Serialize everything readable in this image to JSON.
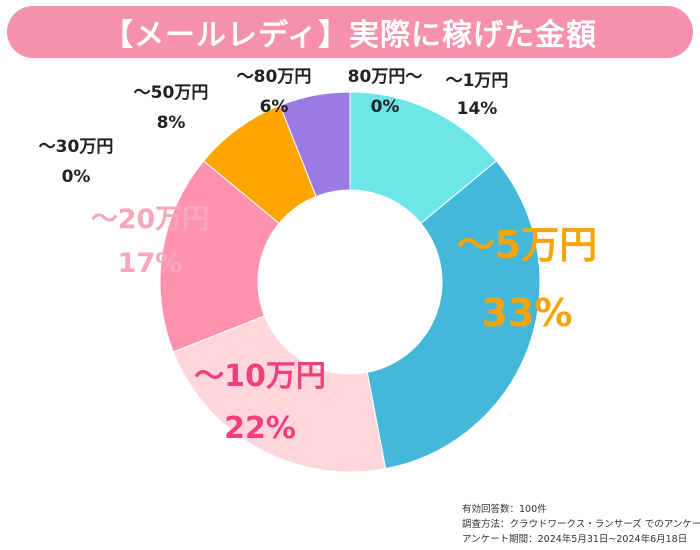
{
  "title": "【メールレディ】実際に稼げた金額",
  "chart_data": {
    "type": "pie",
    "title": "【メールレディ】実際に稼げた金額",
    "slices": [
      {
        "label": "～1万円",
        "value": 14,
        "value_label": "14%",
        "color": "#6ce6e8",
        "label_color": "#222222",
        "emphasis": "normal"
      },
      {
        "label": "～5万円",
        "value": 33,
        "value_label": "33%",
        "color": "#43b8d8",
        "label_color": "#f5a50a",
        "emphasis": "large"
      },
      {
        "label": "～10万円",
        "value": 22,
        "value_label": "22%",
        "color": "#ffd6db",
        "label_color": "#ef3f7f",
        "emphasis": "medium"
      },
      {
        "label": "～20万円",
        "value": 17,
        "value_label": "17%",
        "color": "#ff92af",
        "label_color": "#f7a6bc",
        "emphasis": "medium"
      },
      {
        "label": "～30万円",
        "value": 0,
        "value_label": "0%",
        "color": "#ff7aa0",
        "label_color": "#222222",
        "emphasis": "normal"
      },
      {
        "label": "～50万円",
        "value": 8,
        "value_label": "8%",
        "color": "#fea600",
        "label_color": "#222222",
        "emphasis": "normal"
      },
      {
        "label": "～80万円",
        "value": 6,
        "value_label": "6%",
        "color": "#9b7ae3",
        "label_color": "#222222",
        "emphasis": "normal"
      },
      {
        "label": "80万円～",
        "value": 0,
        "value_label": "0%",
        "color": "#5a5a5a",
        "label_color": "#222222",
        "emphasis": "normal"
      }
    ]
  },
  "footnote": {
    "line1": "有効回答数：100件",
    "line2": "調査方法：クラウドワークス・ランサーズ でのアンケート",
    "line3": "アンケート期間：2024年5月31日~2024年6月18日"
  }
}
